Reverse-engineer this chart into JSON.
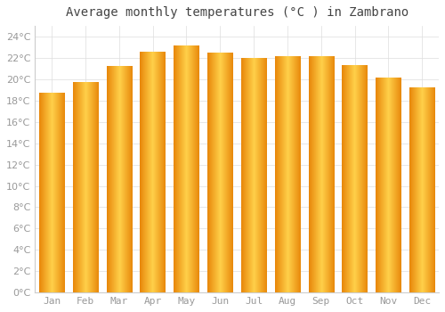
{
  "title": "Average monthly temperatures (°C ) in Zambrano",
  "months": [
    "Jan",
    "Feb",
    "Mar",
    "Apr",
    "May",
    "Jun",
    "Jul",
    "Aug",
    "Sep",
    "Oct",
    "Nov",
    "Dec"
  ],
  "values": [
    18.7,
    19.7,
    21.2,
    22.5,
    23.1,
    22.4,
    21.9,
    22.1,
    22.1,
    21.3,
    20.1,
    19.2
  ],
  "bar_color_center": "#FFD04A",
  "bar_color_edge": "#E8870A",
  "background_color": "#FFFFFF",
  "ylim": [
    0,
    25
  ],
  "yticks": [
    0,
    2,
    4,
    6,
    8,
    10,
    12,
    14,
    16,
    18,
    20,
    22,
    24
  ],
  "grid_color": "#DDDDDD",
  "title_fontsize": 10,
  "tick_fontsize": 8,
  "font_family": "monospace",
  "tick_color": "#999999",
  "spine_color": "#CCCCCC"
}
